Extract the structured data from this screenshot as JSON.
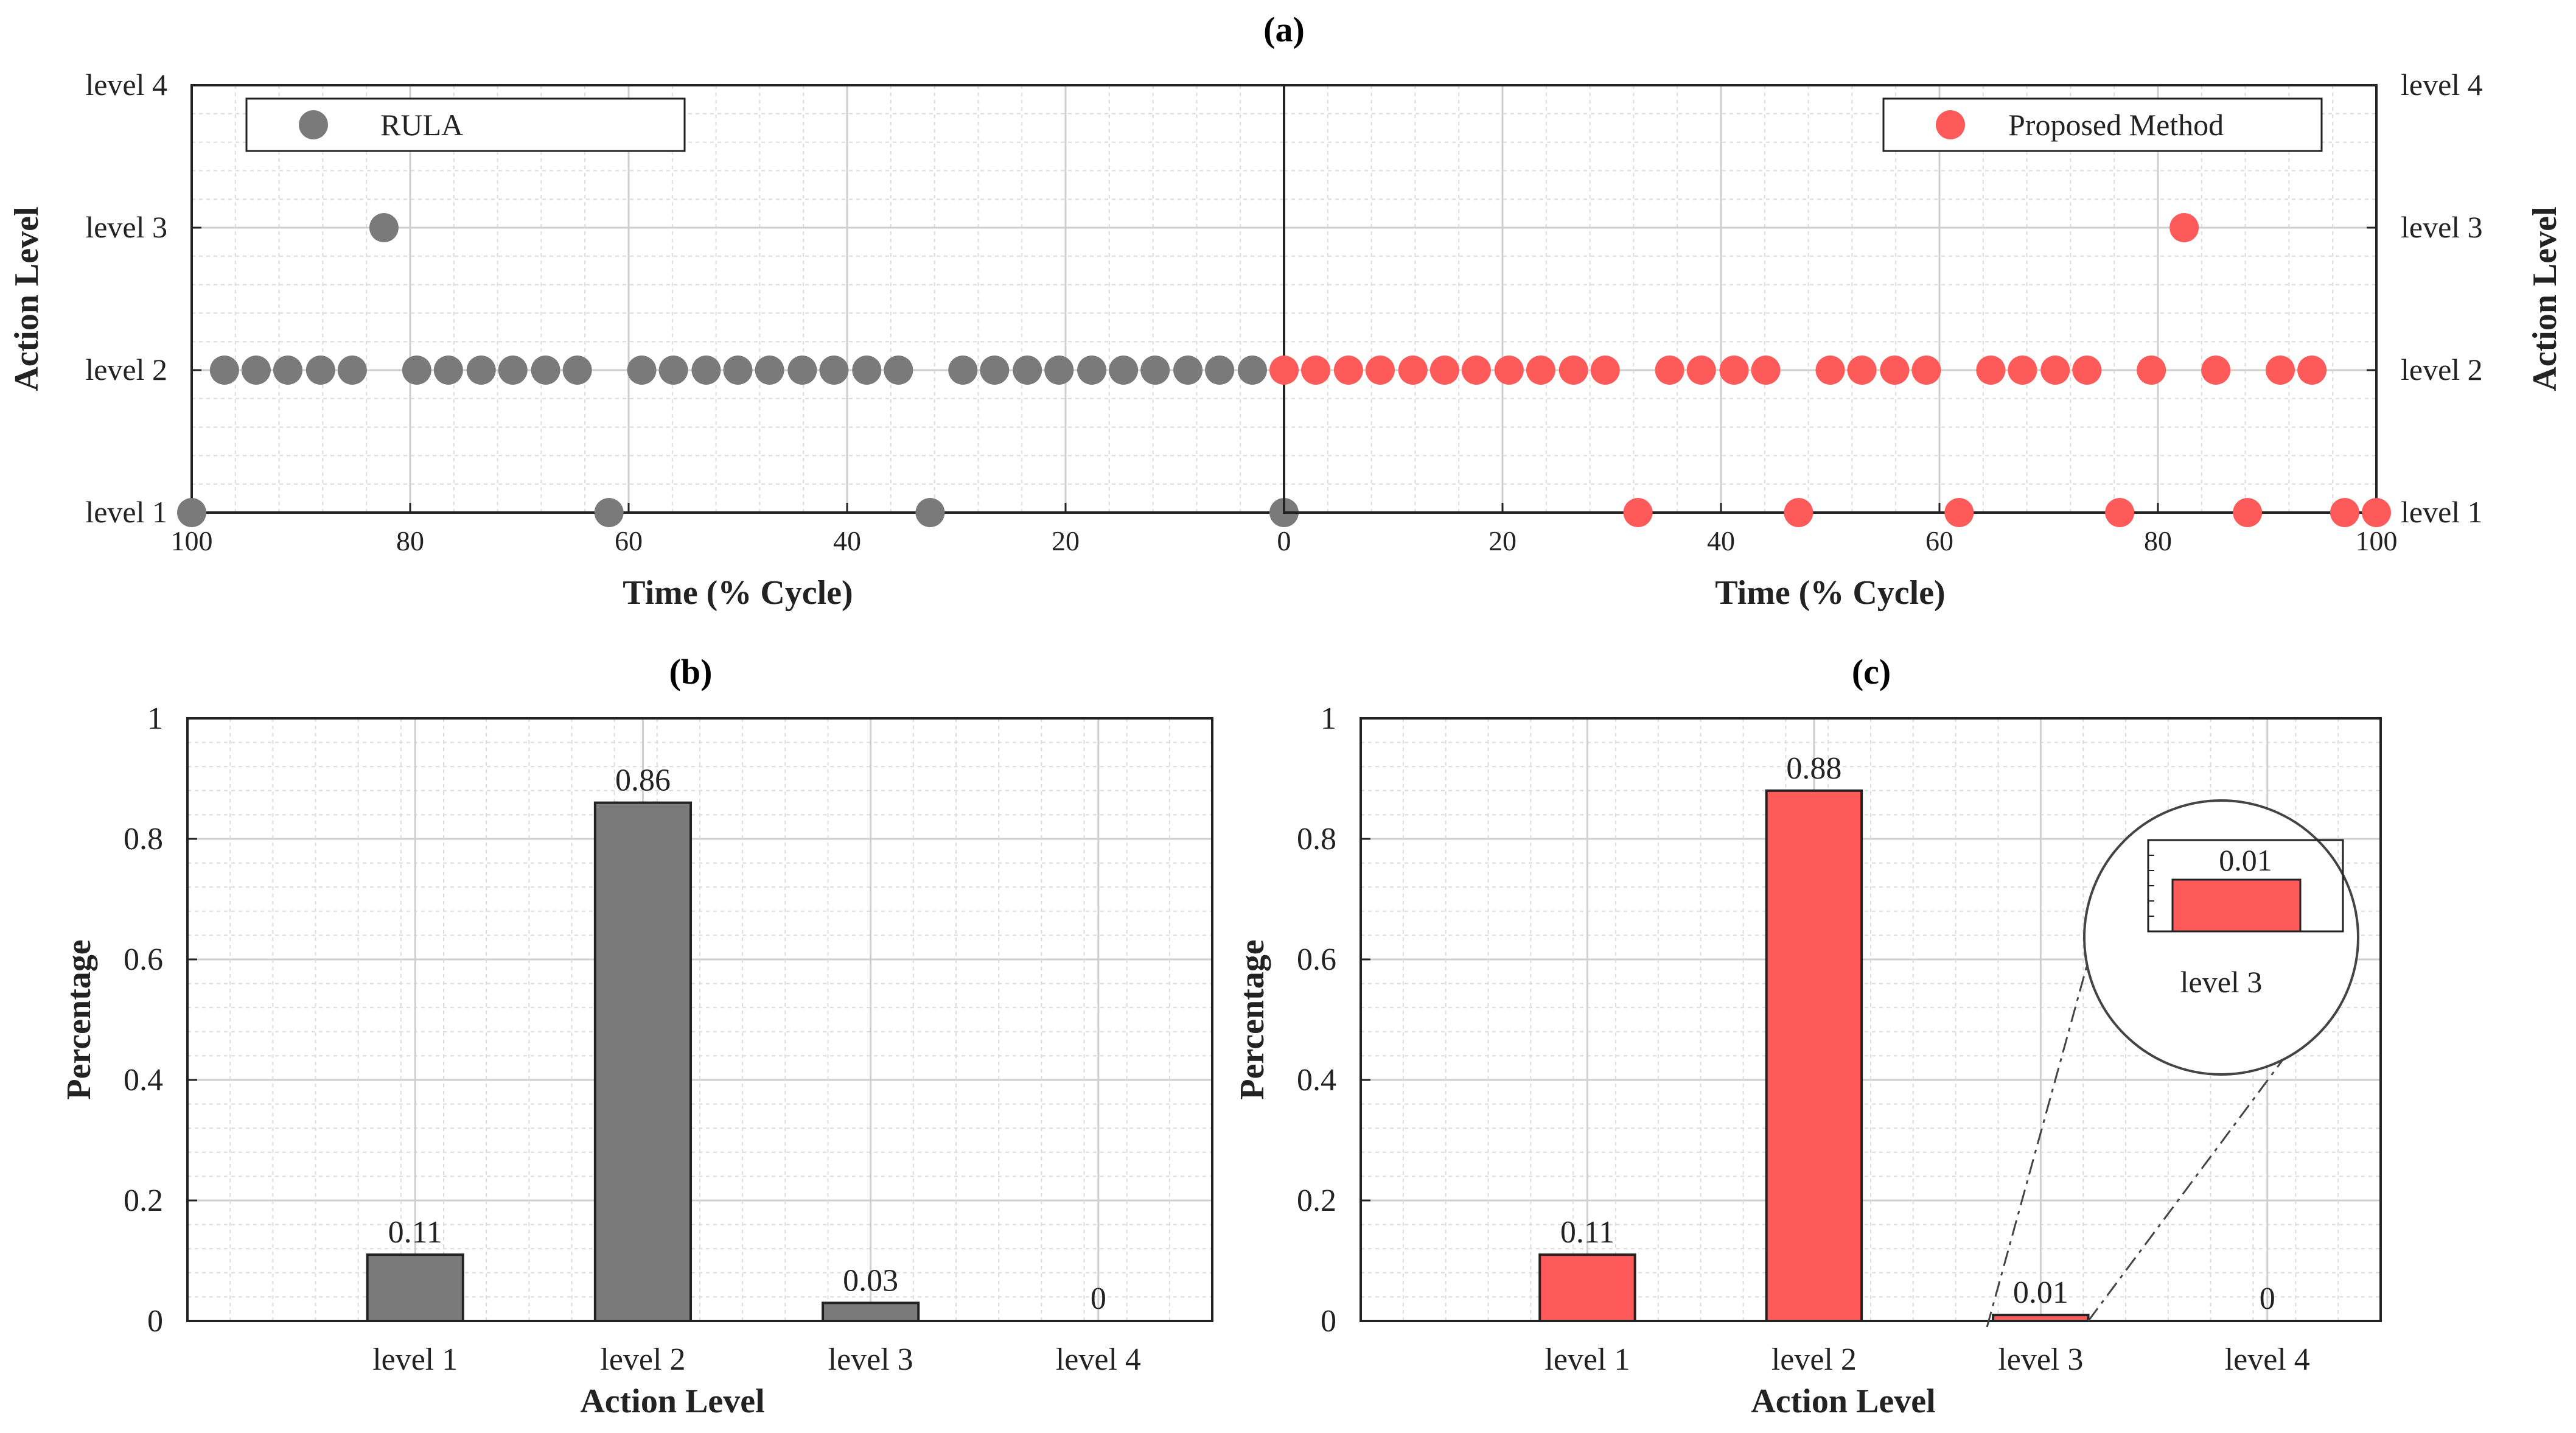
{
  "figure": {
    "panel_a_label": "(a)",
    "panel_b_label": "(b)",
    "panel_c_label": "(c)"
  },
  "chart_data": [
    {
      "id": "a-left",
      "type": "scatter",
      "title": "(a)",
      "xlabel": "Time (% Cycle)",
      "ylabel": "Action Level",
      "x_reversed": true,
      "xlim": [
        0,
        100
      ],
      "ylim": [
        1,
        4
      ],
      "xticks": [
        100,
        80,
        60,
        40,
        20,
        0
      ],
      "ytick_labels": [
        "level 1",
        "level 2",
        "level 3",
        "level 4"
      ],
      "grid": true,
      "legend": {
        "position": "top-left",
        "label": "RULA"
      },
      "color": "#7a7a7a",
      "series": [
        {
          "name": "RULA",
          "x": [
            100,
            97,
            94.1,
            91.2,
            88.2,
            85.3,
            82.4,
            79.4,
            76.5,
            73.5,
            70.6,
            67.6,
            64.7,
            61.8,
            58.8,
            55.9,
            52.9,
            50,
            47.1,
            44.1,
            41.2,
            38.2,
            35.3,
            32.4,
            29.4,
            26.5,
            23.5,
            20.6,
            17.6,
            14.7,
            11.8,
            8.8,
            5.9,
            2.9,
            0
          ],
          "y": [
            1,
            2,
            2,
            2,
            2,
            2,
            3,
            2,
            2,
            2,
            2,
            2,
            2,
            1,
            2,
            2,
            2,
            2,
            2,
            2,
            2,
            2,
            2,
            1,
            2,
            2,
            2,
            2,
            2,
            2,
            2,
            2,
            2,
            2,
            1
          ]
        }
      ]
    },
    {
      "id": "a-right",
      "type": "scatter",
      "xlabel": "Time (% Cycle)",
      "ylabel": "Action Level",
      "xlim": [
        0,
        100
      ],
      "ylim": [
        1,
        4
      ],
      "xticks": [
        0,
        20,
        40,
        60,
        80,
        100
      ],
      "ytick_labels": [
        "level 1",
        "level 2",
        "level 3",
        "level 4"
      ],
      "grid": true,
      "legend": {
        "position": "top-right",
        "label": "Proposed Method"
      },
      "color": "#ff5a5a",
      "series": [
        {
          "name": "Proposed Method",
          "x": [
            0,
            2.9,
            5.9,
            8.8,
            11.8,
            14.7,
            17.6,
            20.6,
            23.5,
            26.5,
            29.4,
            32.4,
            35.3,
            38.2,
            41.2,
            44.1,
            47.1,
            50,
            52.9,
            55.9,
            58.8,
            61.8,
            64.7,
            67.6,
            70.6,
            73.5,
            76.5,
            79.4,
            82.4,
            85.3,
            88.2,
            91.2,
            94.1,
            97.1,
            100
          ],
          "y": [
            2,
            2,
            2,
            2,
            2,
            2,
            2,
            2,
            2,
            2,
            2,
            1,
            2,
            2,
            2,
            2,
            1,
            2,
            2,
            2,
            2,
            1,
            2,
            2,
            2,
            2,
            1,
            2,
            3,
            2,
            1,
            2,
            2,
            1,
            1
          ]
        }
      ]
    },
    {
      "id": "b",
      "type": "bar",
      "title": "(b)",
      "xlabel": "Action Level",
      "ylabel": "Percentage",
      "categories": [
        "level 1",
        "level 2",
        "level 3",
        "level 4"
      ],
      "values": [
        0.11,
        0.86,
        0.03,
        0
      ],
      "value_labels": [
        "0.11",
        "0.86",
        "0.03",
        "0"
      ],
      "ylim": [
        0,
        1
      ],
      "yticks": [
        "0",
        "0.2",
        "0.4",
        "0.6",
        "0.8",
        "1"
      ],
      "grid": true,
      "color": "#7a7a7a"
    },
    {
      "id": "c",
      "type": "bar",
      "title": "(c)",
      "xlabel": "Action Level",
      "ylabel": "Percentage",
      "categories": [
        "level 1",
        "level 2",
        "level 3",
        "level 4"
      ],
      "values": [
        0.11,
        0.88,
        0.01,
        0
      ],
      "value_labels": [
        "0.11",
        "0.88",
        "0.01",
        "0"
      ],
      "ylim": [
        0,
        1
      ],
      "yticks": [
        "0",
        "0.2",
        "0.4",
        "0.6",
        "0.8",
        "1"
      ],
      "grid": true,
      "color": "#ff5a5a",
      "inset": {
        "category": "level 3",
        "value_label": "0.01"
      }
    }
  ]
}
